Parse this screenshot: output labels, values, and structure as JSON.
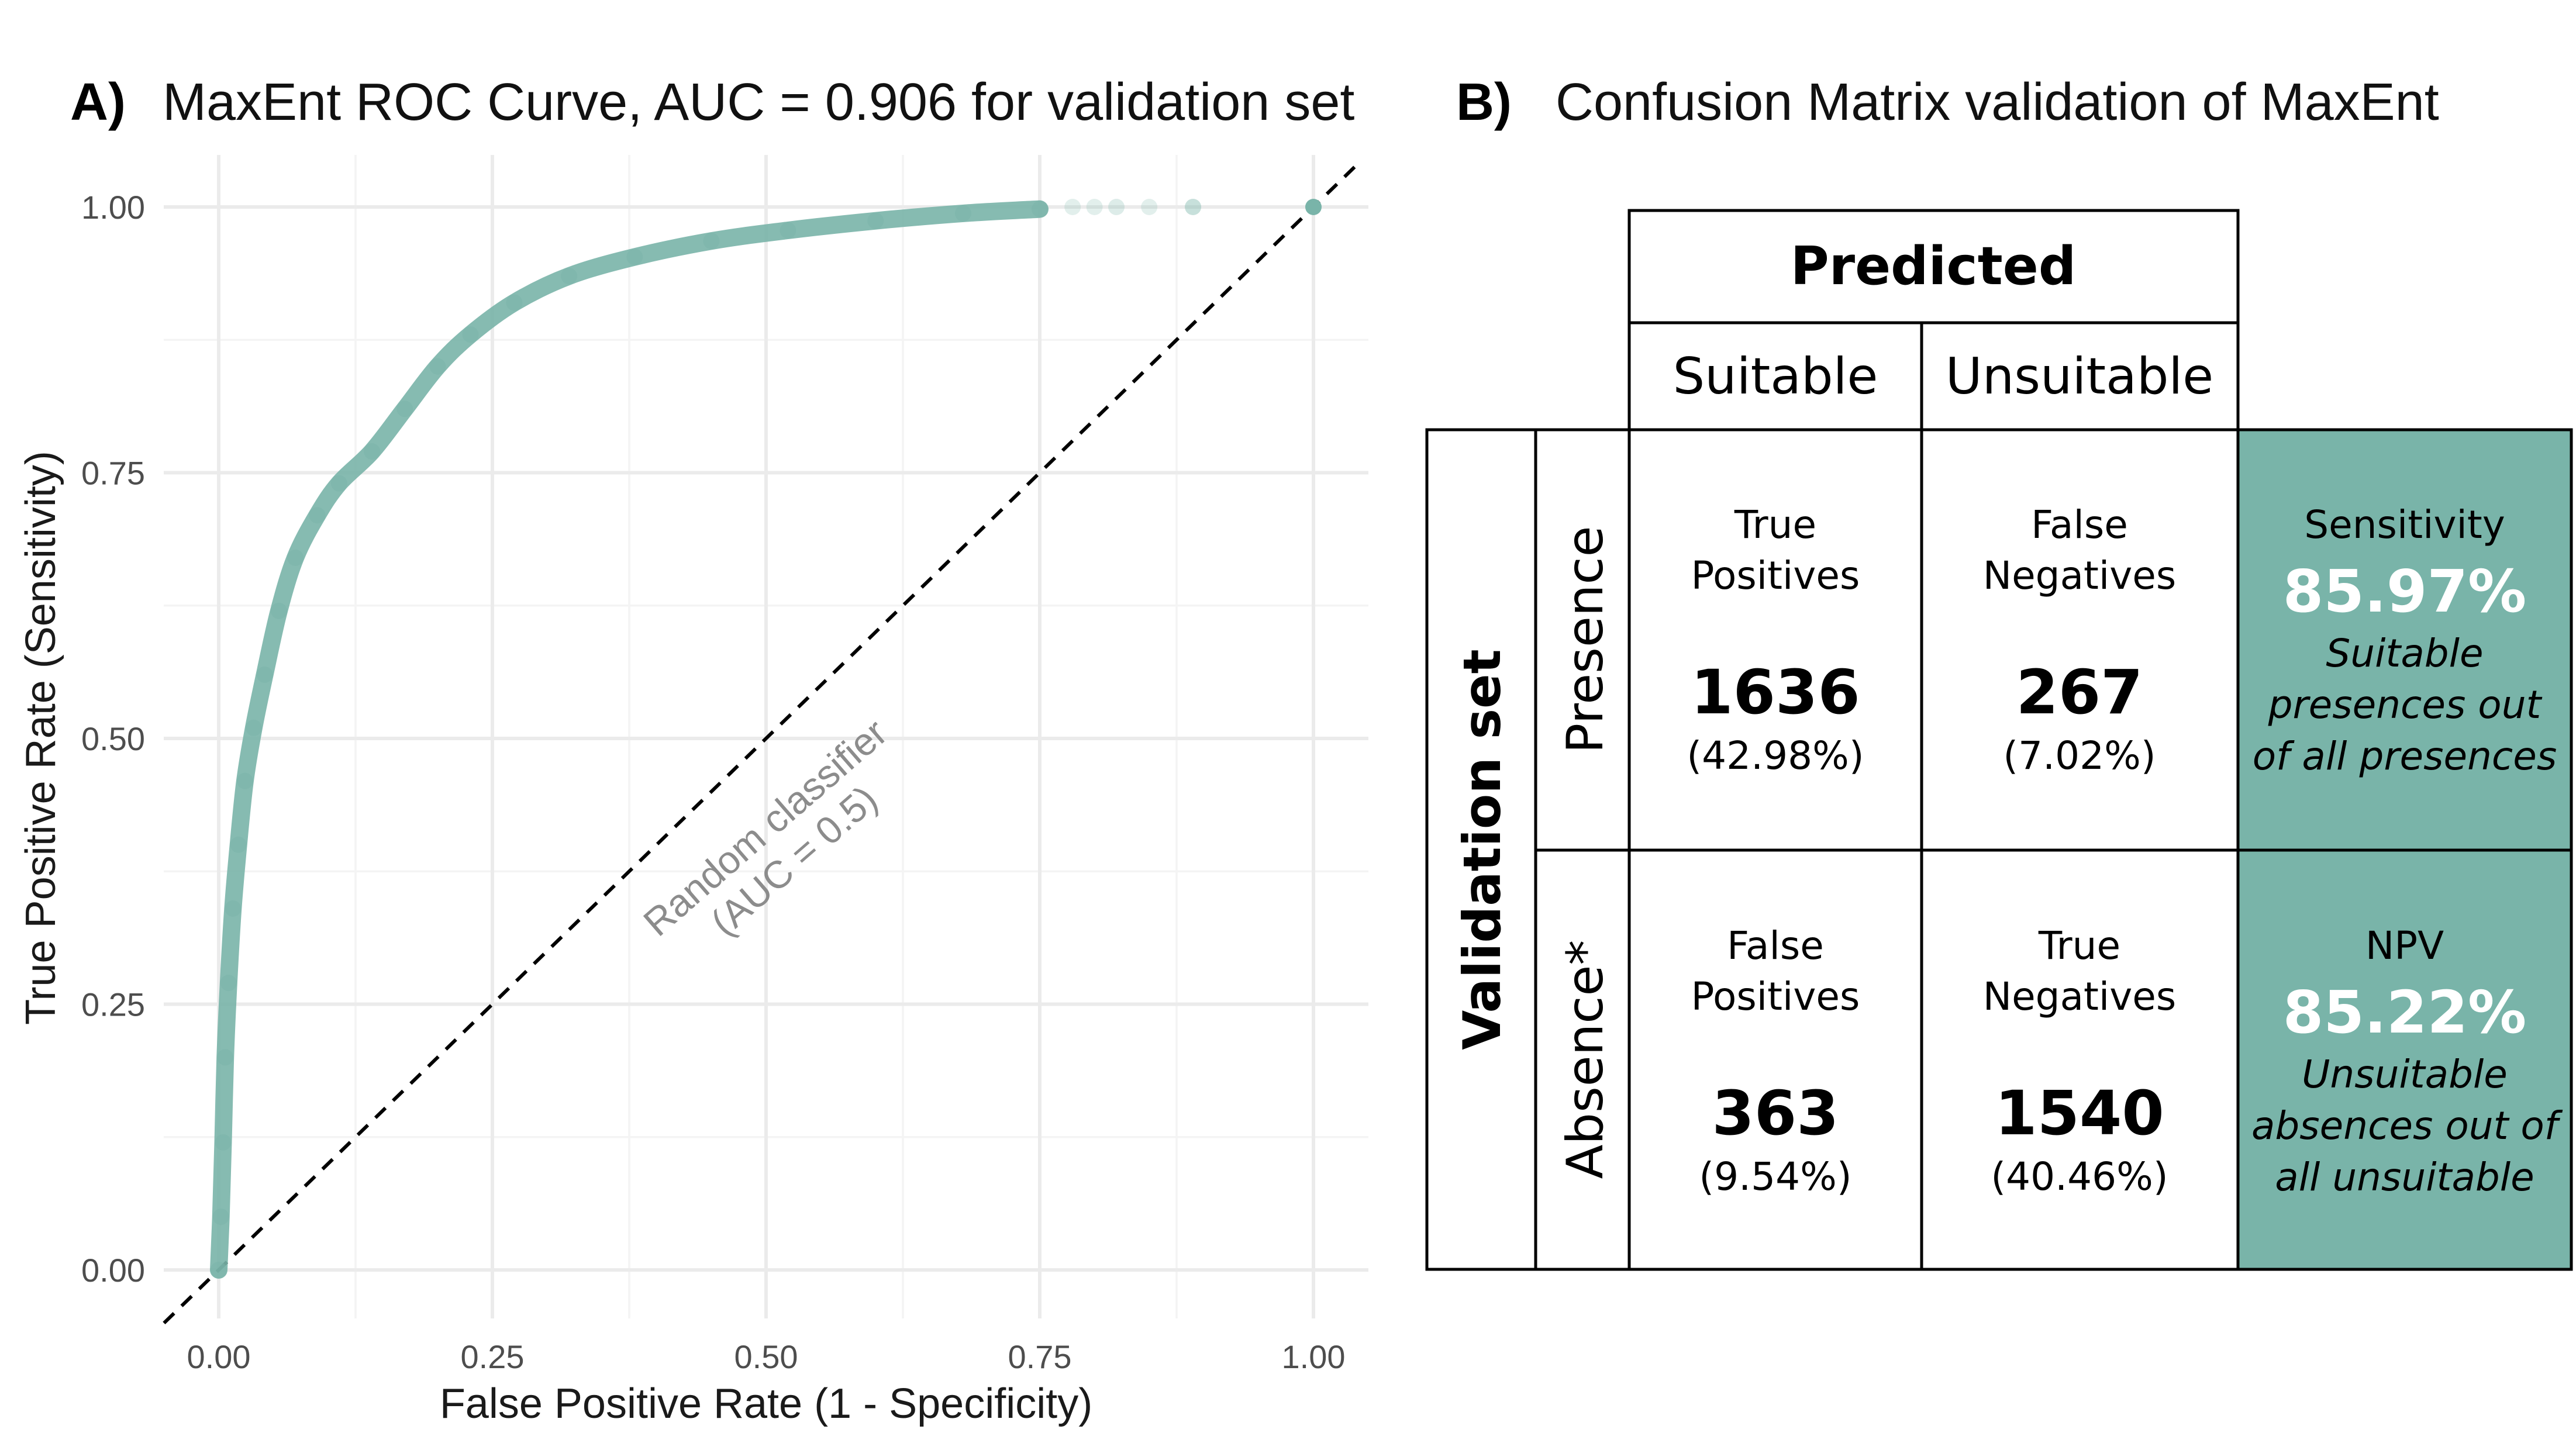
{
  "panel_a": {
    "letter": "A)",
    "title": "MaxEnt ROC Curve, AUC = 0.906 for validation set",
    "diagonal_label_line1": "Random classifier",
    "diagonal_label_line2": "(AUC = 0.5)"
  },
  "panel_b": {
    "letter": "B)",
    "title": "Confusion Matrix validation of MaxEnt",
    "predicted_header": "Predicted",
    "col_suitable": "Suitable",
    "col_unsuitable": "Unsuitable",
    "row_group": "Validation set",
    "row_presence": "Presence",
    "row_absence": "Absence*",
    "cells": {
      "tp": {
        "line1": "True",
        "line2": "Positives",
        "count": "1636",
        "pct": "(42.98%)"
      },
      "fn": {
        "line1": "False",
        "line2": "Negatives",
        "count": "267",
        "pct": "(7.02%)"
      },
      "fp": {
        "line1": "False",
        "line2": "Positives",
        "count": "363",
        "pct": "(9.54%)"
      },
      "tn": {
        "line1": "True",
        "line2": "Negatives",
        "count": "1540",
        "pct": "(40.46%)"
      }
    },
    "sensitivity": {
      "label": "Sensitivity",
      "value": "85.97%",
      "desc1": "Suitable",
      "desc2": "presences out",
      "desc3": "of all presences"
    },
    "npv": {
      "label": "NPV",
      "value": "85.22%",
      "desc1": "Unsuitable",
      "desc2": "absences out of",
      "desc3": "all unsuitable"
    },
    "accent_color": "#79b4a9"
  },
  "chart_data": {
    "type": "scatter",
    "title": "MaxEnt ROC Curve, AUC = 0.906 for validation set",
    "xlabel": "False Positive Rate (1 - Specificity)",
    "ylabel": "True Positive Rate (Sensitivity)",
    "xlim": [
      0,
      1
    ],
    "ylim": [
      0,
      1
    ],
    "x_ticks": [
      "0.00",
      "0.25",
      "0.50",
      "0.75",
      "1.00"
    ],
    "y_ticks": [
      "0.00",
      "0.25",
      "0.50",
      "0.75",
      "1.00"
    ],
    "grid": true,
    "series_color": "#79b4a9",
    "reference_line": {
      "type": "diagonal",
      "style": "dashed",
      "from": [
        0,
        0
      ],
      "to": [
        1,
        1
      ]
    },
    "roc_points": [
      [
        0.0,
        0.0
      ],
      [
        0.002,
        0.05
      ],
      [
        0.004,
        0.12
      ],
      [
        0.006,
        0.2
      ],
      [
        0.009,
        0.27
      ],
      [
        0.013,
        0.34
      ],
      [
        0.018,
        0.4
      ],
      [
        0.024,
        0.46
      ],
      [
        0.032,
        0.51
      ],
      [
        0.042,
        0.56
      ],
      [
        0.055,
        0.62
      ],
      [
        0.07,
        0.67
      ],
      [
        0.09,
        0.71
      ],
      [
        0.11,
        0.74
      ],
      [
        0.14,
        0.77
      ],
      [
        0.17,
        0.81
      ],
      [
        0.2,
        0.85
      ],
      [
        0.23,
        0.88
      ],
      [
        0.27,
        0.91
      ],
      [
        0.32,
        0.935
      ],
      [
        0.38,
        0.953
      ],
      [
        0.45,
        0.968
      ],
      [
        0.52,
        0.978
      ],
      [
        0.6,
        0.987
      ],
      [
        0.68,
        0.994
      ],
      [
        0.75,
        0.998
      ],
      [
        0.82,
        1.0
      ],
      [
        0.89,
        1.0
      ],
      [
        1.0,
        1.0
      ]
    ]
  }
}
